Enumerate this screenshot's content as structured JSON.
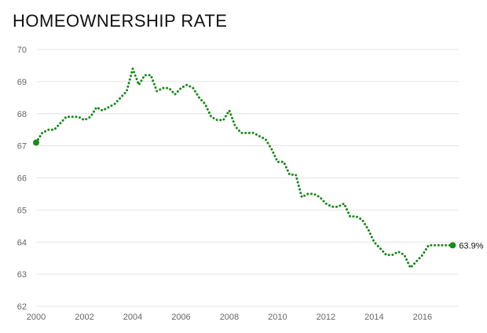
{
  "chart_data": {
    "type": "line",
    "title": "HOMEOWNERSHIP RATE",
    "xlabel": "",
    "ylabel": "",
    "xlim": [
      2000,
      2017.5
    ],
    "ylim": [
      62,
      70
    ],
    "x_ticks": [
      2000,
      2002,
      2004,
      2006,
      2008,
      2010,
      2012,
      2014,
      2016
    ],
    "y_ticks": [
      62,
      63,
      64,
      65,
      66,
      67,
      68,
      69,
      70
    ],
    "grid": true,
    "end_label": "63.9%",
    "line_color": "#1a8a1a",
    "series": [
      {
        "x": [
          2000.0,
          2000.25,
          2000.5,
          2000.75,
          2001.0,
          2001.25,
          2001.5,
          2001.75,
          2002.0,
          2002.25,
          2002.5,
          2002.75,
          2003.0,
          2003.25,
          2003.5,
          2003.75,
          2004.0,
          2004.25,
          2004.5,
          2004.75,
          2005.0,
          2005.25,
          2005.5,
          2005.75,
          2006.0,
          2006.25,
          2006.5,
          2006.75,
          2007.0,
          2007.25,
          2007.5,
          2007.75,
          2008.0,
          2008.25,
          2008.5,
          2008.75,
          2009.0,
          2009.25,
          2009.5,
          2009.75,
          2010.0,
          2010.25,
          2010.5,
          2010.75,
          2011.0,
          2011.25,
          2011.5,
          2011.75,
          2012.0,
          2012.25,
          2012.5,
          2012.75,
          2013.0,
          2013.25,
          2013.5,
          2013.75,
          2014.0,
          2014.25,
          2014.5,
          2014.75,
          2015.0,
          2015.25,
          2015.5,
          2015.75,
          2016.0,
          2016.25,
          2016.5,
          2016.75,
          2017.0,
          2017.25
        ],
        "values": [
          67.1,
          67.4,
          67.5,
          67.5,
          67.7,
          67.9,
          67.9,
          67.9,
          67.8,
          67.9,
          68.2,
          68.1,
          68.2,
          68.3,
          68.5,
          68.7,
          69.4,
          68.9,
          69.2,
          69.2,
          68.7,
          68.8,
          68.8,
          68.6,
          68.8,
          68.9,
          68.8,
          68.5,
          68.3,
          67.9,
          67.8,
          67.8,
          68.1,
          67.6,
          67.4,
          67.4,
          67.4,
          67.3,
          67.2,
          66.9,
          66.5,
          66.5,
          66.1,
          66.1,
          65.4,
          65.5,
          65.5,
          65.4,
          65.2,
          65.1,
          65.1,
          65.2,
          64.8,
          64.8,
          64.7,
          64.4,
          64.0,
          63.8,
          63.6,
          63.6,
          63.7,
          63.6,
          63.2,
          63.4,
          63.6,
          63.9,
          63.9,
          63.9,
          63.9,
          63.9
        ]
      }
    ]
  }
}
